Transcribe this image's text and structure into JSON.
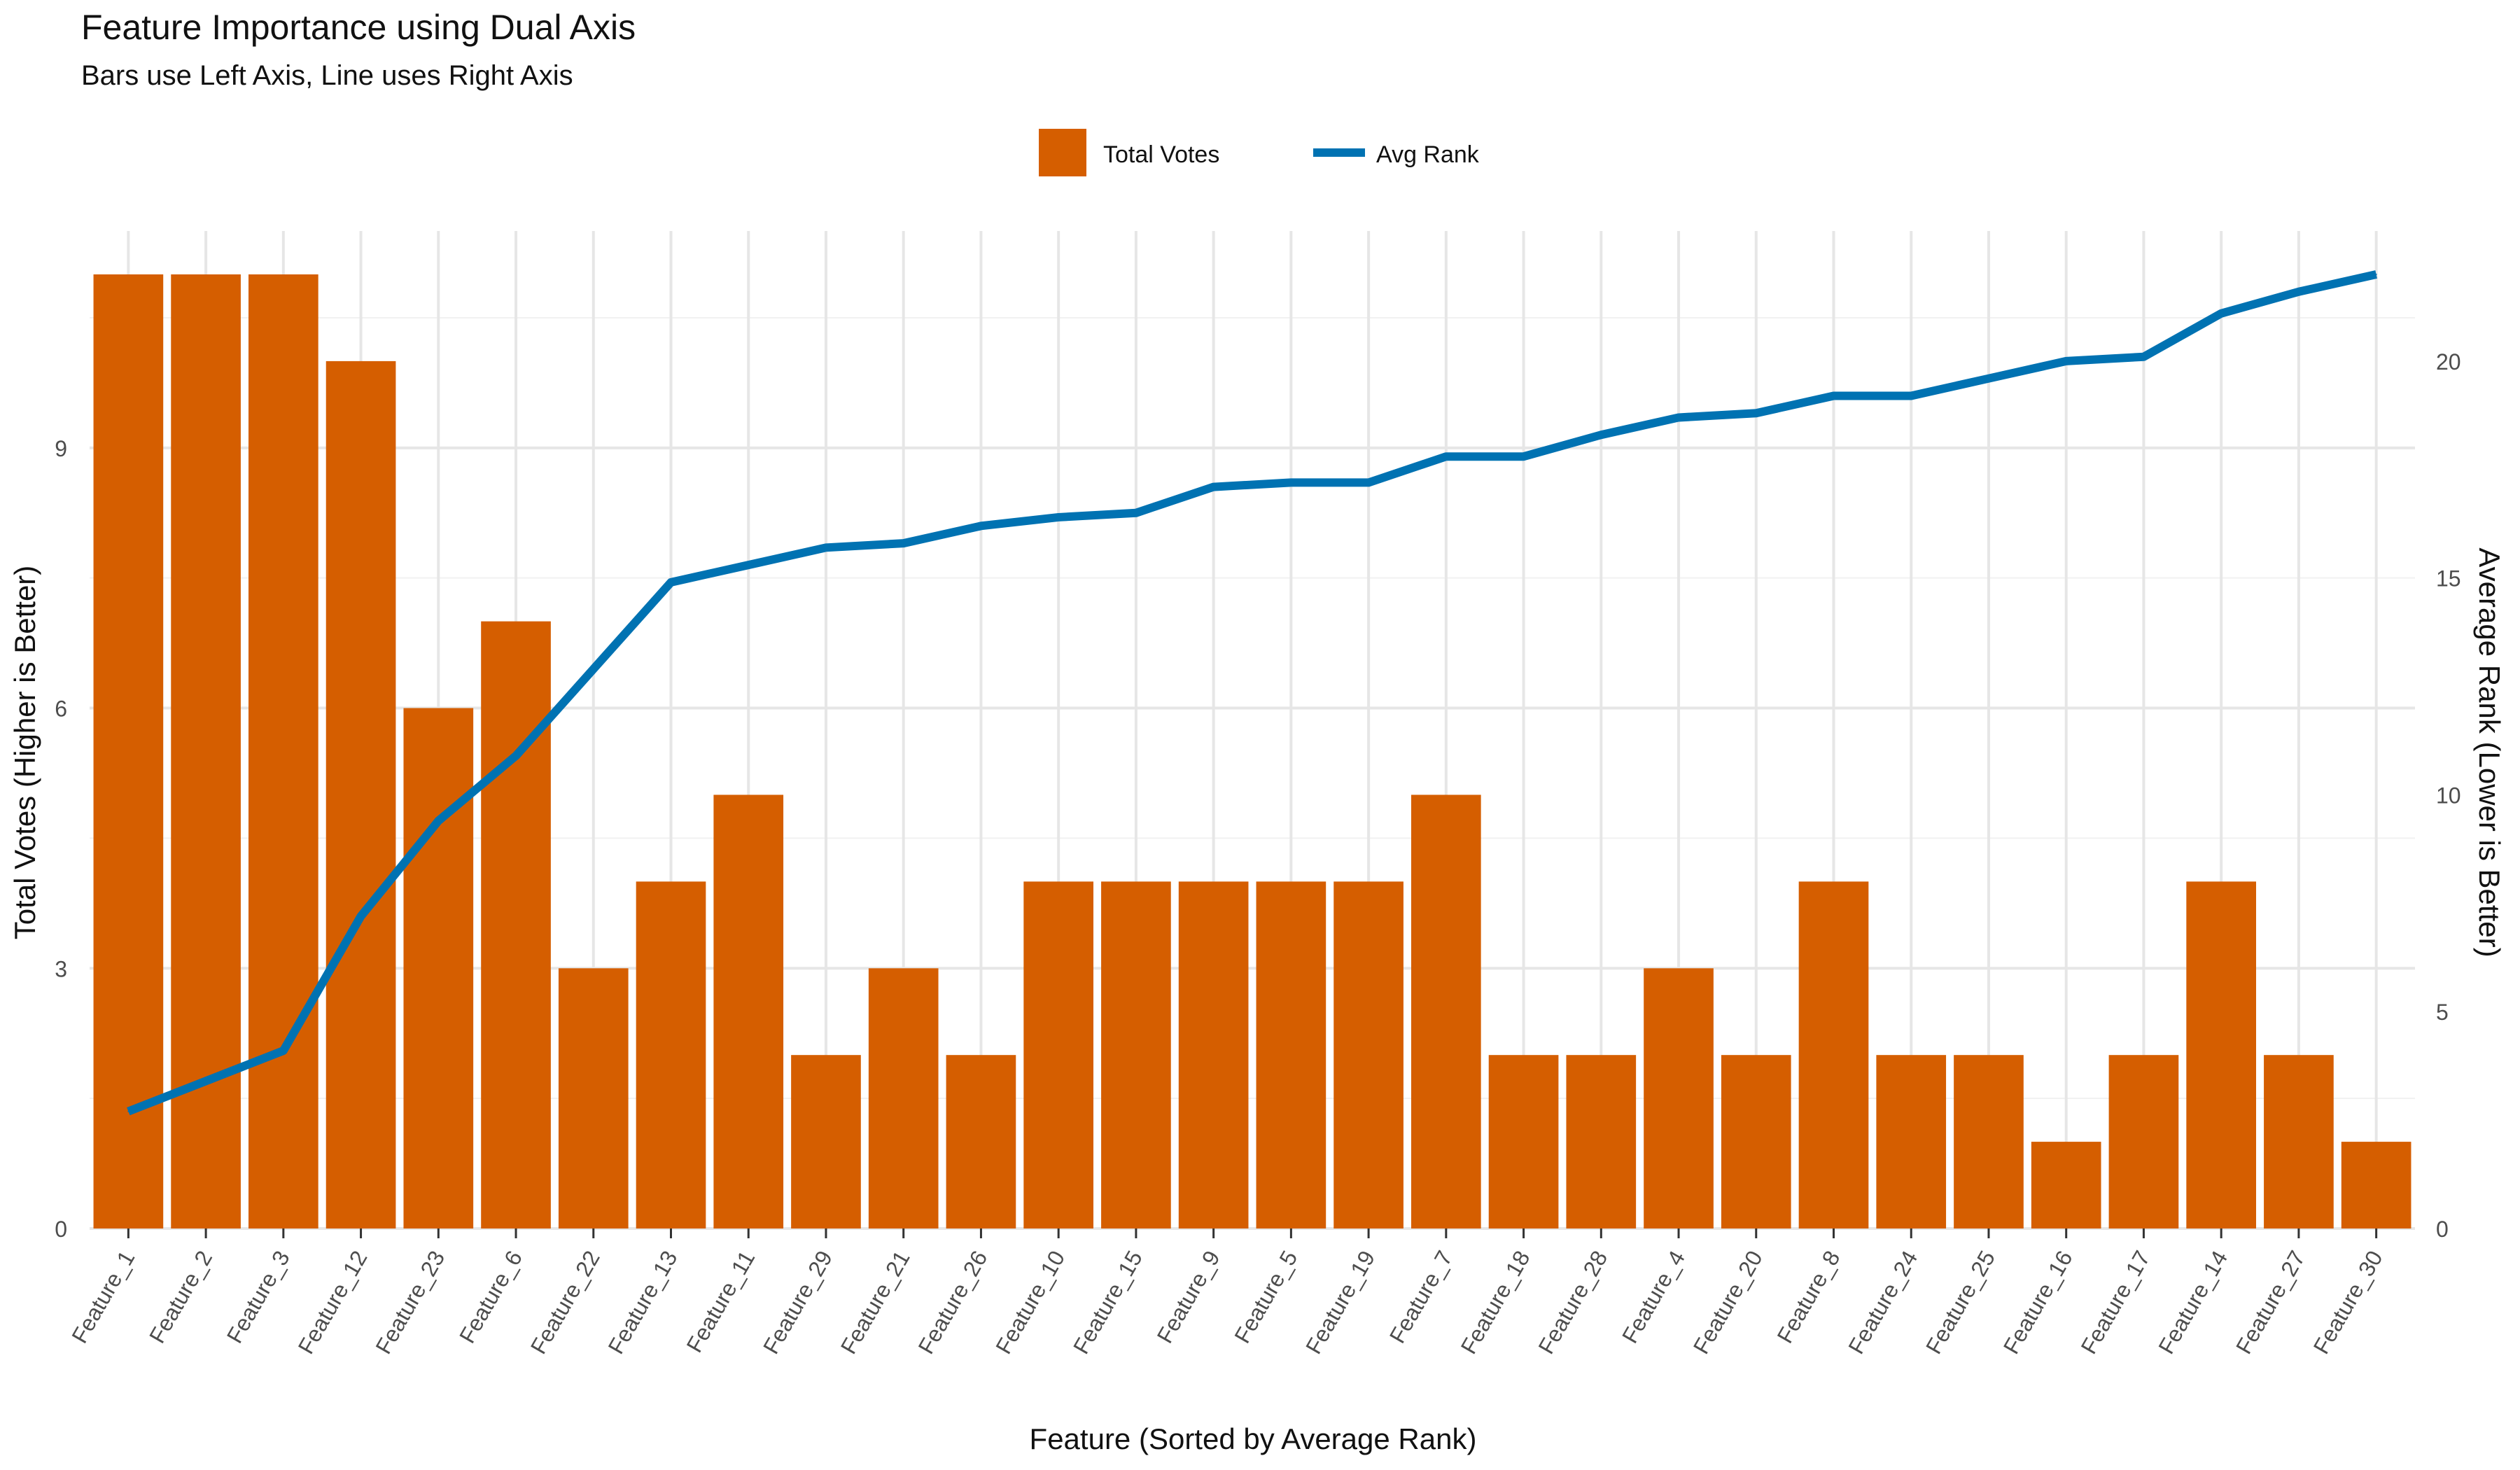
{
  "chart_data": {
    "type": "bar",
    "title": "Feature Importance using Dual Axis",
    "subtitle": "Bars use Left Axis, Line uses Right Axis",
    "xlabel": "Feature (Sorted by Average Rank)",
    "ylabel": "Total Votes (Higher is Better)",
    "y2label": "Average Rank (Lower is Better)",
    "categories": [
      "Feature_1",
      "Feature_2",
      "Feature_3",
      "Feature_12",
      "Feature_23",
      "Feature_6",
      "Feature_22",
      "Feature_13",
      "Feature_11",
      "Feature_29",
      "Feature_21",
      "Feature_26",
      "Feature_10",
      "Feature_15",
      "Feature_9",
      "Feature_5",
      "Feature_19",
      "Feature_7",
      "Feature_18",
      "Feature_28",
      "Feature_4",
      "Feature_20",
      "Feature_8",
      "Feature_24",
      "Feature_25",
      "Feature_16",
      "Feature_17",
      "Feature_14",
      "Feature_27",
      "Feature_30"
    ],
    "series": [
      {
        "name": "Total Votes",
        "type": "bar",
        "axis": "left",
        "color": "#D55E00",
        "values": [
          11,
          11,
          11,
          10,
          6,
          7,
          3,
          4,
          5,
          2,
          3,
          2,
          4,
          4,
          4,
          4,
          4,
          5,
          2,
          2,
          3,
          2,
          4,
          2,
          2,
          1,
          2,
          4,
          2,
          1
        ]
      },
      {
        "name": "Avg Rank",
        "type": "line",
        "axis": "right",
        "color": "#0072B2",
        "values": [
          2.7,
          3.4,
          4.1,
          7.2,
          9.4,
          10.9,
          12.9,
          14.9,
          15.3,
          15.7,
          15.8,
          16.2,
          16.4,
          16.5,
          17.1,
          17.2,
          17.2,
          17.8,
          17.8,
          18.3,
          18.7,
          18.8,
          19.2,
          19.2,
          19.6,
          20.0,
          20.1,
          21.1,
          21.6,
          22.0
        ]
      }
    ],
    "ylim": [
      0,
      11
    ],
    "y2lim": [
      0,
      22
    ],
    "yticks": [
      0,
      3,
      6,
      9
    ],
    "y2ticks": [
      0,
      5,
      10,
      15,
      20
    ],
    "grid": true,
    "legend_position": "top"
  }
}
